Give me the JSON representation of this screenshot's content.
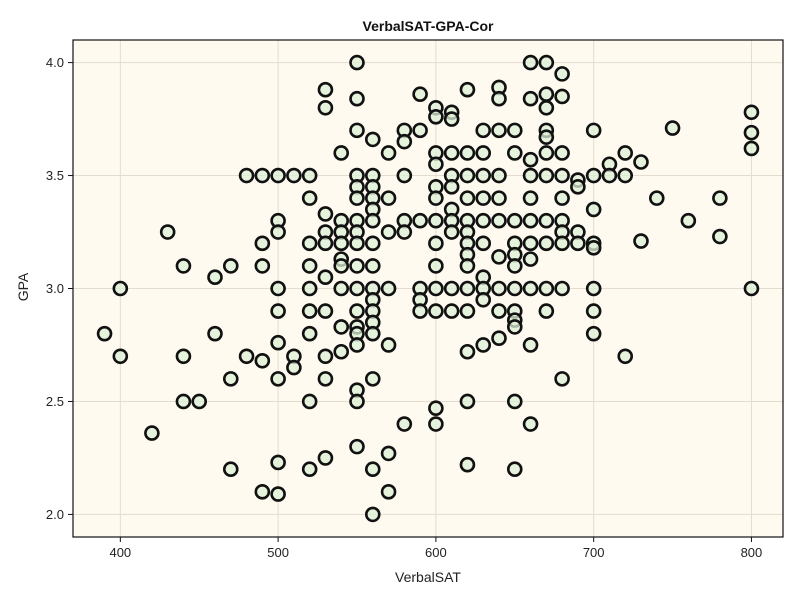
{
  "chart_data": {
    "type": "scatter",
    "title": "VerbalSAT-GPA-Cor",
    "xlabel": "VerbalSAT",
    "ylabel": "GPA",
    "xlim": [
      370,
      820
    ],
    "ylim": [
      1.9,
      4.1
    ],
    "xticks": [
      "400",
      "500",
      "600",
      "700",
      "800"
    ],
    "yticks": [
      "2.0",
      "2.5",
      "3.0",
      "3.5",
      "4.0"
    ],
    "grid": true,
    "colors": {
      "background": "#fffaf0",
      "marker_fill": "#dcefd6",
      "marker_edge": "#111111",
      "overlap_fill": "#a8d49c",
      "grid": "#e3dccf"
    },
    "points": [
      [
        390,
        2.8
      ],
      [
        400,
        3.0
      ],
      [
        400,
        2.7
      ],
      [
        420,
        2.36
      ],
      [
        430,
        3.25
      ],
      [
        440,
        3.1
      ],
      [
        440,
        2.7
      ],
      [
        440,
        2.5
      ],
      [
        450,
        2.5
      ],
      [
        460,
        3.05
      ],
      [
        460,
        2.8
      ],
      [
        470,
        3.1
      ],
      [
        470,
        2.6
      ],
      [
        470,
        2.2
      ],
      [
        480,
        3.5
      ],
      [
        480,
        2.7
      ],
      [
        490,
        3.5
      ],
      [
        490,
        3.2
      ],
      [
        490,
        3.1
      ],
      [
        490,
        2.68
      ],
      [
        490,
        2.1
      ],
      [
        500,
        3.5
      ],
      [
        500,
        3.3
      ],
      [
        500,
        3.25
      ],
      [
        500,
        3.0
      ],
      [
        500,
        2.9
      ],
      [
        500,
        2.76
      ],
      [
        500,
        2.6
      ],
      [
        500,
        2.23
      ],
      [
        500,
        2.09
      ],
      [
        510,
        3.5
      ],
      [
        510,
        2.7
      ],
      [
        510,
        2.65
      ],
      [
        520,
        3.5
      ],
      [
        520,
        3.4
      ],
      [
        520,
        3.2
      ],
      [
        520,
        3.1
      ],
      [
        520,
        3.0
      ],
      [
        520,
        2.9
      ],
      [
        520,
        2.8
      ],
      [
        520,
        2.5
      ],
      [
        520,
        2.2
      ],
      [
        530,
        3.88
      ],
      [
        530,
        3.8
      ],
      [
        530,
        3.33
      ],
      [
        530,
        3.25
      ],
      [
        530,
        3.2
      ],
      [
        530,
        3.05
      ],
      [
        530,
        2.9
      ],
      [
        530,
        2.7
      ],
      [
        530,
        2.6
      ],
      [
        530,
        2.25
      ],
      [
        540,
        3.6
      ],
      [
        540,
        3.3
      ],
      [
        540,
        3.25
      ],
      [
        540,
        3.2
      ],
      [
        540,
        3.13
      ],
      [
        540,
        3.1
      ],
      [
        540,
        3.0
      ],
      [
        540,
        2.83
      ],
      [
        540,
        2.72
      ],
      [
        550,
        4.0
      ],
      [
        550,
        3.84
      ],
      [
        550,
        3.7
      ],
      [
        550,
        3.5
      ],
      [
        550,
        3.45
      ],
      [
        550,
        3.4
      ],
      [
        550,
        3.3
      ],
      [
        550,
        3.25
      ],
      [
        550,
        3.2
      ],
      [
        550,
        3.1
      ],
      [
        550,
        3.0
      ],
      [
        550,
        2.9
      ],
      [
        550,
        2.83
      ],
      [
        550,
        2.8
      ],
      [
        550,
        2.75
      ],
      [
        550,
        2.55
      ],
      [
        550,
        2.5
      ],
      [
        550,
        2.3
      ],
      [
        560,
        3.66
      ],
      [
        560,
        3.5
      ],
      [
        560,
        3.45
      ],
      [
        560,
        3.4
      ],
      [
        560,
        3.35
      ],
      [
        560,
        3.3
      ],
      [
        560,
        3.2
      ],
      [
        560,
        3.1
      ],
      [
        560,
        3.0
      ],
      [
        560,
        2.95
      ],
      [
        560,
        2.9
      ],
      [
        560,
        2.85
      ],
      [
        560,
        2.8
      ],
      [
        560,
        2.6
      ],
      [
        560,
        2.2
      ],
      [
        560,
        2.0
      ],
      [
        570,
        3.6
      ],
      [
        570,
        3.4
      ],
      [
        570,
        3.25
      ],
      [
        570,
        3.0
      ],
      [
        570,
        2.75
      ],
      [
        570,
        2.27
      ],
      [
        570,
        2.1
      ],
      [
        580,
        3.7
      ],
      [
        580,
        3.65
      ],
      [
        580,
        3.5
      ],
      [
        580,
        3.3
      ],
      [
        580,
        3.25
      ],
      [
        580,
        2.4
      ],
      [
        590,
        3.86
      ],
      [
        590,
        3.7
      ],
      [
        590,
        3.3
      ],
      [
        590,
        3.0
      ],
      [
        590,
        2.95
      ],
      [
        590,
        2.9
      ],
      [
        600,
        3.8
      ],
      [
        600,
        3.76
      ],
      [
        600,
        3.6
      ],
      [
        600,
        3.55
      ],
      [
        600,
        3.45
      ],
      [
        600,
        3.4
      ],
      [
        600,
        3.3
      ],
      [
        600,
        3.2
      ],
      [
        600,
        3.1
      ],
      [
        600,
        3.0
      ],
      [
        600,
        2.9
      ],
      [
        600,
        2.47
      ],
      [
        600,
        2.4
      ],
      [
        610,
        3.78
      ],
      [
        610,
        3.75
      ],
      [
        610,
        3.6
      ],
      [
        610,
        3.5
      ],
      [
        610,
        3.45
      ],
      [
        610,
        3.35
      ],
      [
        610,
        3.3
      ],
      [
        610,
        3.25
      ],
      [
        610,
        3.0
      ],
      [
        610,
        2.9
      ],
      [
        620,
        3.88
      ],
      [
        620,
        3.6
      ],
      [
        620,
        3.5
      ],
      [
        620,
        3.4
      ],
      [
        620,
        3.3
      ],
      [
        620,
        3.25
      ],
      [
        620,
        3.2
      ],
      [
        620,
        3.15
      ],
      [
        620,
        3.1
      ],
      [
        620,
        3.0
      ],
      [
        620,
        2.9
      ],
      [
        620,
        2.72
      ],
      [
        620,
        2.5
      ],
      [
        620,
        2.22
      ],
      [
        630,
        3.7
      ],
      [
        630,
        3.6
      ],
      [
        630,
        3.5
      ],
      [
        630,
        3.4
      ],
      [
        630,
        3.3
      ],
      [
        630,
        3.2
      ],
      [
        630,
        3.05
      ],
      [
        630,
        3.0
      ],
      [
        630,
        2.95
      ],
      [
        630,
        2.75
      ],
      [
        640,
        3.89
      ],
      [
        640,
        3.84
      ],
      [
        640,
        3.7
      ],
      [
        640,
        3.5
      ],
      [
        640,
        3.4
      ],
      [
        640,
        3.3
      ],
      [
        640,
        3.14
      ],
      [
        640,
        3.0
      ],
      [
        640,
        2.9
      ],
      [
        640,
        2.78
      ],
      [
        650,
        3.7
      ],
      [
        650,
        3.6
      ],
      [
        650,
        3.3
      ],
      [
        650,
        3.2
      ],
      [
        650,
        3.15
      ],
      [
        650,
        3.1
      ],
      [
        650,
        3.0
      ],
      [
        650,
        2.9
      ],
      [
        650,
        2.86
      ],
      [
        650,
        2.83
      ],
      [
        650,
        2.5
      ],
      [
        650,
        2.2
      ],
      [
        660,
        4.0
      ],
      [
        660,
        3.84
      ],
      [
        660,
        3.57
      ],
      [
        660,
        3.5
      ],
      [
        660,
        3.4
      ],
      [
        660,
        3.3
      ],
      [
        660,
        3.2
      ],
      [
        660,
        3.13
      ],
      [
        660,
        3.0
      ],
      [
        660,
        2.75
      ],
      [
        660,
        2.4
      ],
      [
        670,
        4.0
      ],
      [
        670,
        3.86
      ],
      [
        670,
        3.8
      ],
      [
        670,
        3.7
      ],
      [
        670,
        3.67
      ],
      [
        670,
        3.6
      ],
      [
        670,
        3.5
      ],
      [
        670,
        3.3
      ],
      [
        670,
        3.2
      ],
      [
        670,
        3.0
      ],
      [
        670,
        2.9
      ],
      [
        680,
        3.95
      ],
      [
        680,
        3.85
      ],
      [
        680,
        3.6
      ],
      [
        680,
        3.5
      ],
      [
        680,
        3.4
      ],
      [
        680,
        3.3
      ],
      [
        680,
        3.25
      ],
      [
        680,
        3.2
      ],
      [
        680,
        3.0
      ],
      [
        680,
        2.6
      ],
      [
        690,
        3.48
      ],
      [
        690,
        3.45
      ],
      [
        690,
        3.25
      ],
      [
        690,
        3.2
      ],
      [
        700,
        3.7
      ],
      [
        700,
        3.5
      ],
      [
        700,
        3.35
      ],
      [
        700,
        3.2
      ],
      [
        700,
        3.18
      ],
      [
        700,
        3.0
      ],
      [
        700,
        2.9
      ],
      [
        700,
        2.8
      ],
      [
        710,
        3.55
      ],
      [
        710,
        3.5
      ],
      [
        720,
        3.6
      ],
      [
        720,
        3.5
      ],
      [
        720,
        2.7
      ],
      [
        730,
        3.56
      ],
      [
        730,
        3.21
      ],
      [
        740,
        3.4
      ],
      [
        750,
        3.71
      ],
      [
        760,
        3.3
      ],
      [
        780,
        3.4
      ],
      [
        780,
        3.23
      ],
      [
        800,
        3.78
      ],
      [
        800,
        3.69
      ],
      [
        800,
        3.62
      ],
      [
        800,
        3.0
      ]
    ]
  }
}
